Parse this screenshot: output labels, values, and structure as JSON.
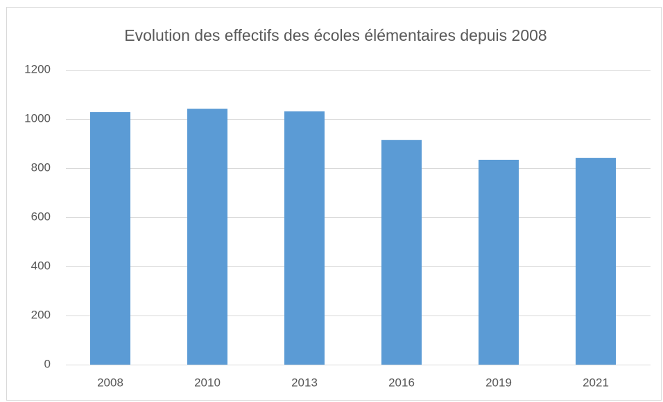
{
  "chart_data": {
    "type": "bar",
    "title": "Evolution des effectifs des écoles élémentaires depuis 2008",
    "categories": [
      "2008",
      "2010",
      "2013",
      "2016",
      "2019",
      "2021"
    ],
    "values": [
      1028,
      1042,
      1031,
      915,
      834,
      842
    ],
    "color": "#5b9bd5",
    "ylim": [
      0,
      1200
    ],
    "yticks": [
      0,
      200,
      400,
      600,
      800,
      1000,
      1200
    ],
    "grid": true
  }
}
